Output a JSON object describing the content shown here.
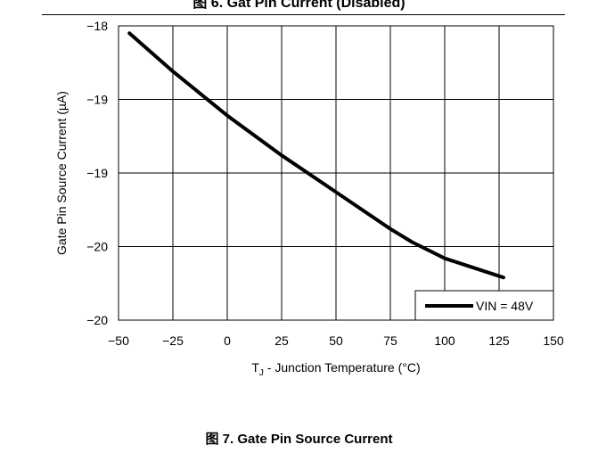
{
  "captions": {
    "top": "图 6. Gat Pin Current (Disabled)",
    "bottom": "图 7. Gate Pin Source Current"
  },
  "chart_data": {
    "type": "line",
    "title": "",
    "xlabel_main": "T",
    "xlabel_sub": "J",
    "xlabel_rest": " - Junction Temperature (°C)",
    "ylabel": "Gate Pin Source Current (µA)",
    "xlim": [
      -50,
      150
    ],
    "ylim": [
      -20,
      -18
    ],
    "x_ticks": [
      -50,
      -25,
      0,
      25,
      50,
      75,
      100,
      125,
      150
    ],
    "x_tick_labels": [
      "−50",
      "−25",
      "0",
      "25",
      "50",
      "75",
      "100",
      "125",
      "150"
    ],
    "y_tick_labels": [
      "−18",
      "−19",
      "−19",
      "−20",
      "−20"
    ],
    "grid": true,
    "legend_position": "bottom-right",
    "series": [
      {
        "name": "VIN = 48V",
        "color": "#000000",
        "x": [
          -45,
          -25,
          0,
          25,
          50,
          75,
          85,
          100,
          127
        ],
        "y": [
          -18.05,
          -18.31,
          -18.61,
          -18.88,
          -19.13,
          -19.38,
          -19.47,
          -19.58,
          -19.71
        ]
      }
    ]
  }
}
